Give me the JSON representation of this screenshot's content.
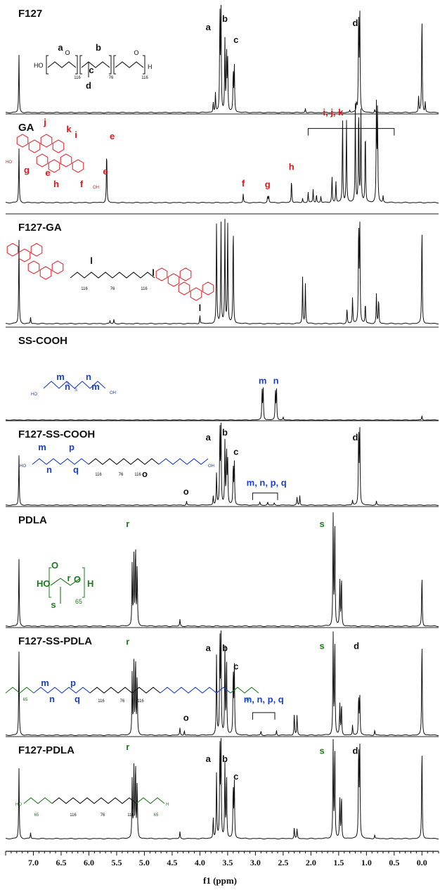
{
  "colors": {
    "black": "#111111",
    "red": "#e8141b",
    "blue": "#1a3fd1",
    "green": "#1e7a1e"
  },
  "chart_data": {
    "type": "line",
    "xlabel": "f1 (ppm)",
    "xlim": [
      7.5,
      -0.3
    ],
    "xticks": [
      7.0,
      6.5,
      6.0,
      5.5,
      5.0,
      4.5,
      4.0,
      3.5,
      3.0,
      2.5,
      2.0,
      1.5,
      1.0,
      0.5,
      0.0
    ],
    "xtick_labels": [
      "7.0",
      "6.5",
      "6.0",
      "5.5",
      "5.0",
      "4.5",
      "4.0",
      "3.5",
      "3.0",
      "2.5",
      "2.0",
      "1.5",
      "1.0",
      "0.5",
      "0.0"
    ],
    "series": [
      {
        "name": "F127",
        "peaks": [
          [
            7.26,
            0.55
          ],
          [
            3.76,
            0.1
          ],
          [
            3.72,
            0.18
          ],
          [
            3.64,
            0.98
          ],
          [
            3.62,
            0.98
          ],
          [
            3.55,
            0.68
          ],
          [
            3.52,
            0.6
          ],
          [
            3.5,
            0.5
          ],
          [
            3.4,
            0.4
          ],
          [
            3.38,
            0.46
          ],
          [
            2.1,
            0.04
          ],
          [
            1.3,
            0.02
          ],
          [
            1.18,
            0.08
          ],
          [
            1.14,
            0.98
          ],
          [
            1.12,
            0.98
          ],
          [
            0.85,
            0.03
          ],
          [
            0.06,
            0.15
          ],
          [
            0.0,
            0.98
          ],
          [
            -0.06,
            0.1
          ]
        ],
        "labels": [
          {
            "text": "a",
            "ppm": 3.85,
            "h": 0.78,
            "color": "black"
          },
          {
            "text": "b",
            "ppm": 3.55,
            "h": 0.86,
            "color": "black"
          },
          {
            "text": "c",
            "ppm": 3.35,
            "h": 0.66,
            "color": "black"
          },
          {
            "text": "d",
            "ppm": 1.2,
            "h": 0.82,
            "color": "black"
          }
        ],
        "structure": {
          "end_l": "HO",
          "end_r": "H",
          "subscripts": [
            "116",
            "76",
            "116"
          ],
          "letters": [
            "a",
            "b",
            "c",
            "d"
          ]
        }
      },
      {
        "name": "GA",
        "peaks": [
          [
            7.26,
            0.5
          ],
          [
            5.68,
            0.5
          ],
          [
            3.22,
            0.08
          ],
          [
            2.78,
            0.06
          ],
          [
            2.76,
            0.06
          ],
          [
            2.35,
            0.22
          ],
          [
            2.15,
            0.04
          ],
          [
            2.05,
            0.1
          ],
          [
            1.96,
            0.12
          ],
          [
            1.9,
            0.08
          ],
          [
            1.82,
            0.06
          ],
          [
            1.62,
            0.25
          ],
          [
            1.55,
            0.2
          ],
          [
            1.43,
            0.8
          ],
          [
            1.36,
            0.78
          ],
          [
            1.2,
            0.9
          ],
          [
            1.14,
            0.92
          ],
          [
            1.1,
            0.85
          ],
          [
            1.02,
            0.7
          ],
          [
            0.82,
            0.88
          ],
          [
            0.8,
            0.86
          ],
          [
            0.7,
            0.06
          ]
        ],
        "labels": [
          {
            "text": "e",
            "ppm": 5.58,
            "h": 0.58,
            "color": "red"
          },
          {
            "text": "f",
            "ppm": 3.22,
            "h": 0.15,
            "color": "red"
          },
          {
            "text": "g",
            "ppm": 2.78,
            "h": 0.14,
            "color": "red"
          },
          {
            "text": "h",
            "ppm": 2.35,
            "h": 0.3,
            "color": "red"
          },
          {
            "text": "i, j, k",
            "ppm": 1.6,
            "h": 0.8,
            "color": "red"
          }
        ],
        "bracket": {
          "from": 2.05,
          "to": 0.5,
          "h": 0.68
        },
        "structure": {
          "letters": [
            "j",
            "k",
            "i",
            "g",
            "e",
            "h",
            "f",
            "e"
          ],
          "end_l": "HO",
          "end_r": "OH"
        }
      },
      {
        "name": "F127-GA",
        "peaks": [
          [
            7.26,
            0.8
          ],
          [
            7.05,
            0.06
          ],
          [
            5.62,
            0.03
          ],
          [
            5.55,
            0.04
          ],
          [
            4.0,
            0.08
          ],
          [
            3.7,
            0.98
          ],
          [
            3.62,
            0.98
          ],
          [
            3.55,
            0.98
          ],
          [
            3.5,
            0.98
          ],
          [
            3.4,
            0.98
          ],
          [
            2.15,
            0.44
          ],
          [
            2.1,
            0.38
          ],
          [
            1.35,
            0.15
          ],
          [
            1.25,
            0.25
          ],
          [
            1.14,
            0.98
          ],
          [
            1.12,
            0.98
          ],
          [
            1.02,
            0.2
          ],
          [
            0.82,
            0.28
          ],
          [
            0.78,
            0.24
          ],
          [
            0.0,
            0.98
          ]
        ],
        "labels": [
          {
            "text": "l",
            "ppm": 4.0,
            "h": 0.12,
            "color": "black"
          }
        ],
        "structure": {
          "subscripts": [
            "116",
            "76",
            "116"
          ],
          "letters": [
            "l",
            "l"
          ]
        }
      },
      {
        "name": "SS-COOH",
        "peaks": [
          [
            2.88,
            0.56
          ],
          [
            2.86,
            0.56
          ],
          [
            2.64,
            0.56
          ],
          [
            2.62,
            0.56
          ],
          [
            2.5,
            0.05
          ],
          [
            0.0,
            0.08
          ]
        ],
        "labels": [
          {
            "text": "m",
            "ppm": 2.87,
            "h": 0.66,
            "color": "blue"
          },
          {
            "text": "n",
            "ppm": 2.63,
            "h": 0.66,
            "color": "blue"
          }
        ],
        "structure": {
          "letters": [
            "m",
            "n",
            "n",
            "m"
          ],
          "end_l": "HO",
          "end_r": "OH"
        }
      },
      {
        "name": "F127-SS-COOH",
        "peaks": [
          [
            7.26,
            0.62
          ],
          [
            4.24,
            0.05
          ],
          [
            3.76,
            0.12
          ],
          [
            3.7,
            0.4
          ],
          [
            3.64,
            0.98
          ],
          [
            3.62,
            0.98
          ],
          [
            3.55,
            0.78
          ],
          [
            3.52,
            0.7
          ],
          [
            3.5,
            0.55
          ],
          [
            3.4,
            0.5
          ],
          [
            3.38,
            0.55
          ],
          [
            2.92,
            0.04
          ],
          [
            2.78,
            0.04
          ],
          [
            2.66,
            0.03
          ],
          [
            2.25,
            0.1
          ],
          [
            2.2,
            0.12
          ],
          [
            1.25,
            0.06
          ],
          [
            1.14,
            0.98
          ],
          [
            1.12,
            0.98
          ],
          [
            0.82,
            0.05
          ]
        ],
        "labels": [
          {
            "text": "a",
            "ppm": 3.85,
            "h": 0.8,
            "color": "black"
          },
          {
            "text": "b",
            "ppm": 3.55,
            "h": 0.86,
            "color": "black"
          },
          {
            "text": "c",
            "ppm": 3.35,
            "h": 0.62,
            "color": "black"
          },
          {
            "text": "d",
            "ppm": 1.2,
            "h": 0.8,
            "color": "black"
          },
          {
            "text": "o",
            "ppm": 4.25,
            "h": 0.13,
            "color": "black"
          },
          {
            "text": "m, n, p, q",
            "ppm": 2.8,
            "h": 0.24,
            "color": "blue"
          }
        ],
        "bracket": {
          "from": 3.05,
          "to": 2.6,
          "h": 0.15
        },
        "structure": {
          "letters": [
            "m",
            "p",
            "n",
            "q",
            "o"
          ],
          "subscripts": [
            "116",
            "76",
            "116"
          ],
          "end_l": "HO",
          "end_r": "OH"
        }
      },
      {
        "name": "PDLA",
        "peaks": [
          [
            7.26,
            0.6
          ],
          [
            5.22,
            0.55
          ],
          [
            5.19,
            0.62
          ],
          [
            5.16,
            0.74
          ],
          [
            5.13,
            0.55
          ],
          [
            4.36,
            0.06
          ],
          [
            1.6,
            0.98
          ],
          [
            1.57,
            0.98
          ],
          [
            1.48,
            0.4
          ],
          [
            1.45,
            0.46
          ],
          [
            0.0,
            0.48
          ]
        ],
        "labels": [
          {
            "text": "r",
            "ppm": 5.3,
            "h": 0.88,
            "color": "green"
          },
          {
            "text": "s",
            "ppm": 1.8,
            "h": 0.88,
            "color": "green"
          }
        ],
        "structure": {
          "letters": [
            "r",
            "s"
          ],
          "subscripts": [
            "65"
          ],
          "end_l": "HO",
          "end_r": "H"
        }
      },
      {
        "name": "F127-SS-PDLA",
        "peaks": [
          [
            7.26,
            0.82
          ],
          [
            5.22,
            0.6
          ],
          [
            5.19,
            0.7
          ],
          [
            5.16,
            0.78
          ],
          [
            5.13,
            0.58
          ],
          [
            4.36,
            0.07
          ],
          [
            4.28,
            0.05
          ],
          [
            3.7,
            0.8
          ],
          [
            3.64,
            0.98
          ],
          [
            3.62,
            0.98
          ],
          [
            3.55,
            0.84
          ],
          [
            3.52,
            0.78
          ],
          [
            3.4,
            0.64
          ],
          [
            3.38,
            0.7
          ],
          [
            2.9,
            0.04
          ],
          [
            2.62,
            0.05
          ],
          [
            2.3,
            0.22
          ],
          [
            2.25,
            0.2
          ],
          [
            1.6,
            0.98
          ],
          [
            1.57,
            0.98
          ],
          [
            1.48,
            0.3
          ],
          [
            1.45,
            0.32
          ],
          [
            1.25,
            0.1
          ],
          [
            1.14,
            0.4
          ],
          [
            1.12,
            0.4
          ],
          [
            0.85,
            0.05
          ],
          [
            0.0,
            0.98
          ]
        ],
        "labels": [
          {
            "text": "r",
            "ppm": 5.3,
            "h": 0.88,
            "color": "green"
          },
          {
            "text": "s",
            "ppm": 1.8,
            "h": 0.84,
            "color": "green"
          },
          {
            "text": "a",
            "ppm": 3.85,
            "h": 0.82,
            "color": "black"
          },
          {
            "text": "b",
            "ppm": 3.55,
            "h": 0.82,
            "color": "black"
          },
          {
            "text": "c",
            "ppm": 3.35,
            "h": 0.64,
            "color": "black"
          },
          {
            "text": "d",
            "ppm": 1.18,
            "h": 0.84,
            "color": "black"
          },
          {
            "text": "o",
            "ppm": 4.25,
            "h": 0.14,
            "color": "black"
          },
          {
            "text": "m, n, p, q",
            "ppm": 2.85,
            "h": 0.32,
            "color": "blue"
          }
        ],
        "bracket": {
          "from": 3.05,
          "to": 2.65,
          "h": 0.22
        },
        "structure": {
          "letters": [
            "m",
            "p",
            "n",
            "q"
          ],
          "subscripts": [
            "65",
            "116",
            "76",
            "116",
            "65"
          ]
        }
      },
      {
        "name": "F127-PDLA",
        "peaks": [
          [
            7.26,
            0.72
          ],
          [
            7.05,
            0.06
          ],
          [
            5.22,
            0.6
          ],
          [
            5.19,
            0.72
          ],
          [
            5.16,
            0.8
          ],
          [
            5.13,
            0.58
          ],
          [
            4.36,
            0.07
          ],
          [
            3.76,
            0.22
          ],
          [
            3.7,
            0.68
          ],
          [
            3.64,
            0.98
          ],
          [
            3.62,
            0.98
          ],
          [
            3.55,
            0.75
          ],
          [
            3.52,
            0.68
          ],
          [
            3.4,
            0.54
          ],
          [
            3.38,
            0.6
          ],
          [
            2.3,
            0.12
          ],
          [
            2.25,
            0.1
          ],
          [
            1.6,
            0.98
          ],
          [
            1.57,
            0.98
          ],
          [
            1.48,
            0.4
          ],
          [
            1.45,
            0.46
          ],
          [
            1.14,
            0.98
          ],
          [
            1.12,
            0.98
          ],
          [
            0.85,
            0.04
          ],
          [
            0.0,
            0.98
          ]
        ],
        "labels": [
          {
            "text": "r",
            "ppm": 5.3,
            "h": 0.9,
            "color": "green"
          },
          {
            "text": "s",
            "ppm": 1.8,
            "h": 0.86,
            "color": "green"
          },
          {
            "text": "a",
            "ppm": 3.85,
            "h": 0.78,
            "color": "black"
          },
          {
            "text": "b",
            "ppm": 3.55,
            "h": 0.78,
            "color": "black"
          },
          {
            "text": "c",
            "ppm": 3.35,
            "h": 0.6,
            "color": "black"
          },
          {
            "text": "d",
            "ppm": 1.2,
            "h": 0.86,
            "color": "black"
          }
        ],
        "structure": {
          "subscripts": [
            "65",
            "116",
            "76",
            "116",
            "65"
          ],
          "end_l": "HO",
          "end_r": "H"
        }
      }
    ]
  }
}
